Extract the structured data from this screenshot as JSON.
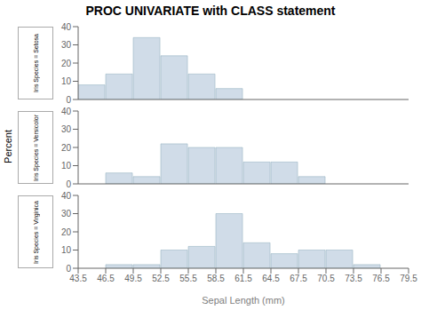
{
  "chart_data": [
    {
      "type": "histogram",
      "title": "PROC UNIVARIATE with CLASS statement",
      "annotations": [
        "Iris Species = Setosa"
      ],
      "bins": [
        43.5,
        46.5,
        49.5,
        52.5,
        55.5,
        58.5,
        61.5,
        64.5,
        67.5,
        70.5,
        73.5,
        76.5,
        79.5
      ],
      "values": [
        8,
        14,
        34,
        24,
        14,
        6,
        0,
        0,
        0,
        0,
        0,
        0
      ],
      "color": "#d0dce8",
      "xlim": [
        43.5,
        79.5
      ],
      "ylim": [
        0,
        40
      ],
      "yticks": [
        0,
        10,
        20,
        30,
        40
      ],
      "grid": false,
      "tick_labels": "y"
    },
    {
      "type": "histogram",
      "ylabel": "Percent",
      "annotations": [
        "Iris Species = Versicolor"
      ],
      "bins": [
        43.5,
        46.5,
        49.5,
        52.5,
        55.5,
        58.5,
        61.5,
        64.5,
        67.5,
        70.5,
        73.5,
        76.5,
        79.5
      ],
      "values": [
        0,
        6,
        4,
        22,
        20,
        20,
        12,
        12,
        4,
        0,
        0,
        0
      ],
      "color": "#d0dce8",
      "xlim": [
        43.5,
        79.5
      ],
      "ylim": [
        0,
        40
      ],
      "yticks": [
        0,
        10,
        20,
        30,
        40
      ],
      "grid": false,
      "tick_labels": "y"
    },
    {
      "type": "histogram",
      "xlabel": "Sepal Length (mm)",
      "annotations": [
        "Iris Species = Virginica"
      ],
      "bins": [
        43.5,
        46.5,
        49.5,
        52.5,
        55.5,
        58.5,
        61.5,
        64.5,
        67.5,
        70.5,
        73.5,
        76.5,
        79.5
      ],
      "values": [
        0,
        2,
        2,
        10,
        12,
        30,
        14,
        8,
        10,
        10,
        2,
        0
      ],
      "color": "#d0dce8",
      "xlim": [
        43.5,
        79.5
      ],
      "xticks": [
        43.5,
        46.5,
        49.5,
        52.5,
        55.5,
        58.5,
        61.5,
        64.5,
        67.5,
        70.5,
        73.5,
        76.5,
        79.5
      ],
      "ylim": [
        0,
        40
      ],
      "yticks": [
        0,
        10,
        20,
        30,
        40
      ],
      "grid": false,
      "tick_labels": true
    }
  ]
}
